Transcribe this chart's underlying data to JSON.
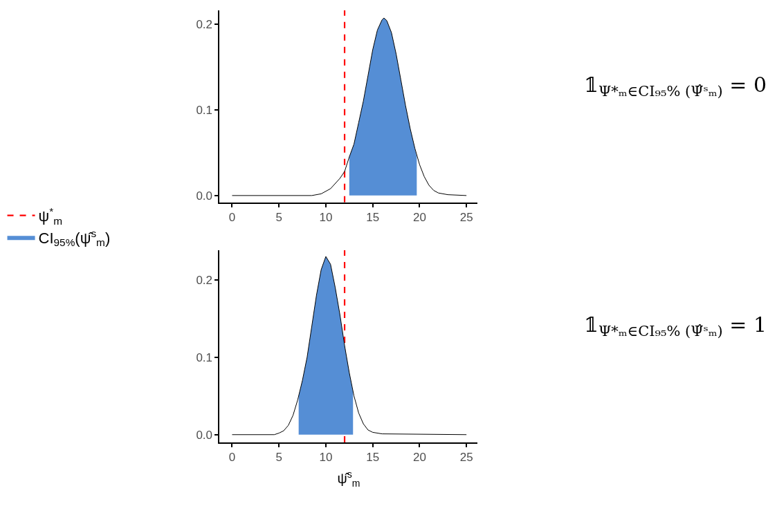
{
  "chart_data": [
    {
      "type": "line",
      "xlim": [
        -1.33,
        26.2
      ],
      "ylim": [
        -0.008,
        0.216
      ],
      "xticks": [
        0,
        5,
        10,
        15,
        20,
        25
      ],
      "yticks": [
        {
          "value": 0,
          "label": "0.0"
        },
        {
          "value": 0.1,
          "label": "0.1"
        },
        {
          "value": 0.2,
          "label": "0.2"
        }
      ],
      "grid": false,
      "legend": "left",
      "annotations": [
        {
          "text": "𝟙$_{Ψ*ₘ∈CI₉₅% (Ψ̂ˢₘ)}$ = 0"
        }
      ],
      "ref_lines": [
        {
          "axis": "x",
          "value": 12,
          "label": "ψ$^{*}$$_{m}$",
          "color": "#ff0000",
          "line_style": "dashed"
        }
      ],
      "series": [
        {
          "type": "area",
          "name": "CI$_{95%}$(ψ̂$^{s}$$_{m}$)",
          "color": "#558ed5",
          "x": [
            12.5,
            13,
            13.5,
            14,
            14.5,
            15,
            15.5,
            16,
            16.2,
            16.5,
            17,
            17.5,
            18,
            18.5,
            19,
            19.5,
            19.7
          ],
          "values": [
            0.045,
            0.06,
            0.085,
            0.11,
            0.14,
            0.17,
            0.193,
            0.205,
            0.207,
            0.204,
            0.19,
            0.165,
            0.135,
            0.105,
            0.078,
            0.055,
            0.045
          ]
        },
        {
          "color": "#000000",
          "x": [
            0,
            8.5,
            9.5,
            10.5,
            11.5,
            12,
            12.5,
            13,
            13.5,
            14,
            14.5,
            15,
            15.5,
            16,
            16.2,
            16.5,
            17,
            17.5,
            18,
            18.5,
            19,
            19.5,
            20,
            20.5,
            21,
            21.5,
            22,
            23,
            25
          ],
          "values": [
            0,
            0,
            0.002,
            0.008,
            0.02,
            0.028,
            0.045,
            0.06,
            0.085,
            0.11,
            0.14,
            0.17,
            0.193,
            0.205,
            0.207,
            0.204,
            0.19,
            0.165,
            0.135,
            0.105,
            0.078,
            0.055,
            0.036,
            0.022,
            0.012,
            0.006,
            0.003,
            0.001,
            0
          ]
        }
      ]
    },
    {
      "type": "line",
      "xlim": [
        -1.33,
        26.2
      ],
      "ylim": [
        -0.01,
        0.238
      ],
      "xticks": [
        0,
        5,
        10,
        15,
        20,
        25
      ],
      "yticks": [
        {
          "value": 0,
          "label": "0.0"
        },
        {
          "value": 0.1,
          "label": "0.1"
        },
        {
          "value": 0.2,
          "label": "0.2"
        }
      ],
      "grid": false,
      "xlabel": "ψ̂$^{s}$$_{m}$",
      "annotations": [
        {
          "text": "𝟙$_{Ψ*ₘ∈CI₉₅% (Ψ̂ˢₘ)}$ = 1"
        }
      ],
      "ref_lines": [
        {
          "axis": "x",
          "value": 12,
          "color": "#ff0000",
          "line_style": "dashed"
        }
      ],
      "series": [
        {
          "type": "area",
          "color": "#558ed5",
          "x": [
            7.1,
            7.5,
            8,
            8.5,
            9,
            9.5,
            10,
            10.5,
            11,
            11.5,
            12,
            12.5,
            12.9
          ],
          "values": [
            0.05,
            0.07,
            0.1,
            0.14,
            0.18,
            0.213,
            0.23,
            0.22,
            0.19,
            0.155,
            0.115,
            0.08,
            0.055
          ]
        },
        {
          "color": "#000000",
          "x": [
            0,
            4.5,
            5,
            5.5,
            6,
            6.5,
            7,
            7.5,
            8,
            8.5,
            9,
            9.5,
            10,
            10.5,
            11,
            11.5,
            12,
            12.5,
            13,
            13.5,
            14,
            14.5,
            15,
            16,
            25
          ],
          "values": [
            0,
            0,
            0.002,
            0.005,
            0.012,
            0.025,
            0.045,
            0.07,
            0.1,
            0.14,
            0.18,
            0.213,
            0.23,
            0.22,
            0.19,
            0.155,
            0.115,
            0.08,
            0.05,
            0.028,
            0.014,
            0.006,
            0.003,
            0.001,
            0
          ]
        }
      ]
    }
  ]
}
